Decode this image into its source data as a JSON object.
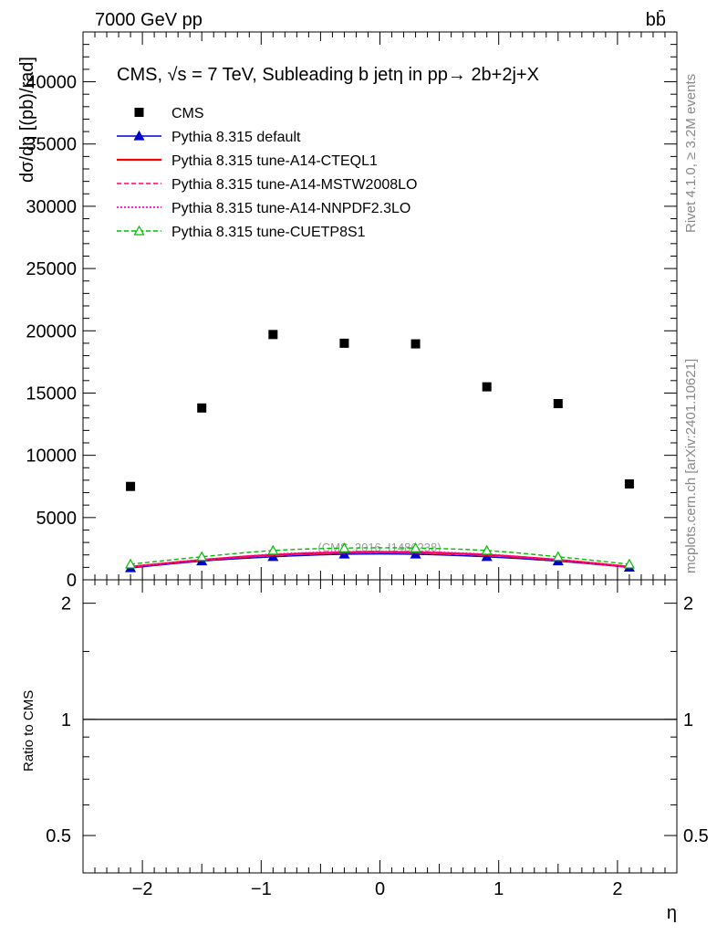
{
  "header": {
    "left": "7000 GeV pp",
    "right": "bb̄"
  },
  "side_labels": {
    "rivet": "Rivet 4.1.0, ≥ 3.2M events",
    "mcplots": "mcplots.cern.ch [arXiv:2401.10621]"
  },
  "chart_data": [
    {
      "type": "scatter",
      "panel": "main",
      "title": "CMS, √s = 7 TeV, Subleading b jetη in pp→  2b+2j+X",
      "xlabel": "η",
      "ylabel": "dσ/dη [(pb)/rad]",
      "xlim": [
        -2.5,
        2.5
      ],
      "ylim": [
        0,
        44000
      ],
      "yticks": [
        0,
        5000,
        10000,
        15000,
        20000,
        25000,
        30000,
        35000,
        40000
      ],
      "ytick_labels": [
        "0",
        "5000",
        "10000",
        "15000",
        "20000",
        "25000",
        "30000",
        "35000",
        "40000"
      ],
      "watermark": "(CMS_2016_I1486238)",
      "x": [
        -2.1,
        -1.5,
        -0.9,
        -0.3,
        0.3,
        0.9,
        1.5,
        2.1
      ],
      "series": [
        {
          "name": "CMS",
          "color": "#000000",
          "style": "marker-square",
          "values": [
            7500,
            13800,
            19700,
            19000,
            18950,
            15500,
            14150,
            7700
          ]
        },
        {
          "name": "Pythia 8.315 default",
          "color": "#0000cc",
          "style": "solid-triangle",
          "values": [
            950,
            1500,
            1850,
            2050,
            2050,
            1850,
            1500,
            1000
          ]
        },
        {
          "name": "Pythia 8.315 tune-A14-CTEQL1",
          "color": "#ff0000",
          "style": "solid-thick",
          "values": [
            1050,
            1600,
            2000,
            2200,
            2200,
            2000,
            1600,
            1050
          ]
        },
        {
          "name": "Pythia 8.315 tune-A14-MSTW2008LO",
          "color": "#ff0066",
          "style": "dashed",
          "values": [
            1000,
            1550,
            1950,
            2150,
            2150,
            1950,
            1550,
            1000
          ]
        },
        {
          "name": "Pythia 8.315 tune-A14-NNPDF2.3LO",
          "color": "#ff00cc",
          "style": "dotted",
          "values": [
            1050,
            1600,
            2050,
            2250,
            2250,
            2050,
            1600,
            1050
          ]
        },
        {
          "name": "Pythia 8.315 tune-CUETP8S1",
          "color": "#00bb00",
          "style": "dashed-open-triangle",
          "values": [
            1250,
            1850,
            2350,
            2550,
            2550,
            2350,
            1850,
            1250
          ]
        }
      ]
    },
    {
      "type": "line",
      "panel": "ratio",
      "ylabel": "Ratio to CMS",
      "xlabel": "η",
      "xlim": [
        -2.5,
        2.5
      ],
      "ylim": [
        0.4,
        2.3
      ],
      "yscale": "log",
      "yticks": [
        0.5,
        1,
        2
      ],
      "ytick_labels": [
        "0.5",
        "1",
        "2"
      ],
      "xticks": [
        -2,
        -1,
        0,
        1,
        2
      ],
      "xtick_labels": [
        "−2",
        "−1",
        "0",
        "1",
        "2"
      ],
      "reference": 1
    }
  ]
}
